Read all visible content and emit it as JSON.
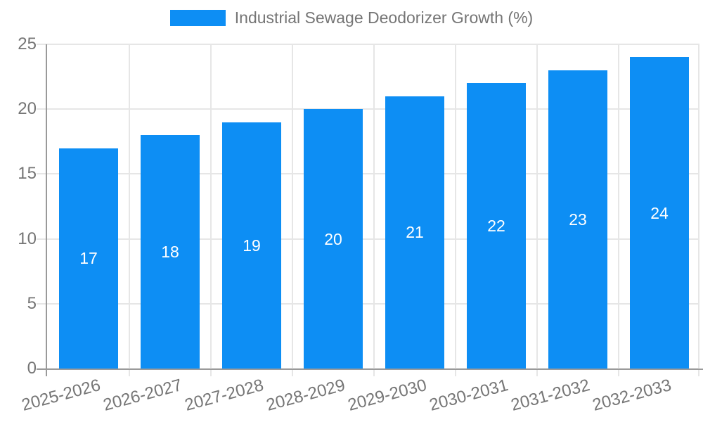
{
  "legend": {
    "label": "Industrial Sewage Deodorizer Growth (%)",
    "swatch_color": "#0d8ef4"
  },
  "chart_data": {
    "type": "bar",
    "title": "Industrial Sewage Deodorizer Growth (%)",
    "categories": [
      "2025-2026",
      "2026-2027",
      "2027-2028",
      "2028-2029",
      "2029-2030",
      "2030-2031",
      "2031-2032",
      "2032-2033"
    ],
    "values": [
      17,
      18,
      19,
      20,
      21,
      22,
      23,
      24
    ],
    "xlabel": "",
    "ylabel": "",
    "ylim": [
      0,
      25
    ],
    "yticks": [
      0,
      5,
      10,
      15,
      20,
      25
    ],
    "grid": true,
    "legend_position": "top-center",
    "bar_color": "#0d8ef4",
    "value_label_color": "#ffffff",
    "value_label_position": "inside-middle",
    "axis_color": "#9a9a9a",
    "gridline_color": "#e6e6e6",
    "text_color": "#757575",
    "xtick_rotation_deg": -15
  }
}
